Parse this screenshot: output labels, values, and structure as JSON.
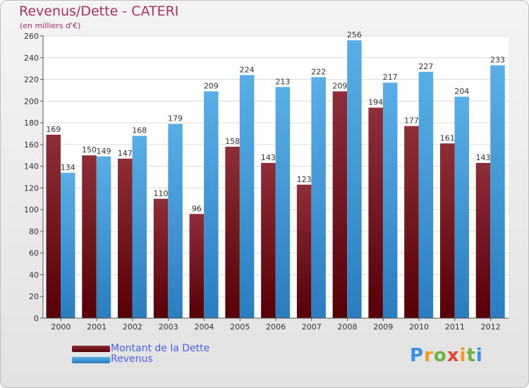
{
  "header": {
    "title": "Revenus/Dette - CATERI",
    "subtitle": "(en milliers d'€)"
  },
  "logo": {
    "text": "Proxiti"
  },
  "chart_data": {
    "type": "bar",
    "title": "Revenus/Dette - CATERI",
    "subtitle": "(en milliers d'€)",
    "xlabel": "",
    "ylabel": "",
    "ylim": [
      0,
      260
    ],
    "y_ticks": [
      0,
      20,
      40,
      60,
      80,
      100,
      120,
      140,
      160,
      180,
      200,
      220,
      240,
      260
    ],
    "grid": true,
    "legend_position": "bottom-left",
    "categories": [
      "2000",
      "2001",
      "2002",
      "2003",
      "2004",
      "2005",
      "2006",
      "2007",
      "2008",
      "2009",
      "2010",
      "2011",
      "2012"
    ],
    "series": [
      {
        "name": "Montant de la Dette",
        "color": "#7a1e28",
        "values": [
          169,
          150,
          147,
          110,
          96,
          158,
          143,
          123,
          209,
          194,
          177,
          161,
          143
        ]
      },
      {
        "name": "Revenus",
        "color": "#3c95d8",
        "values": [
          134,
          149,
          168,
          179,
          209,
          224,
          213,
          222,
          256,
          217,
          227,
          204,
          233
        ]
      }
    ]
  }
}
